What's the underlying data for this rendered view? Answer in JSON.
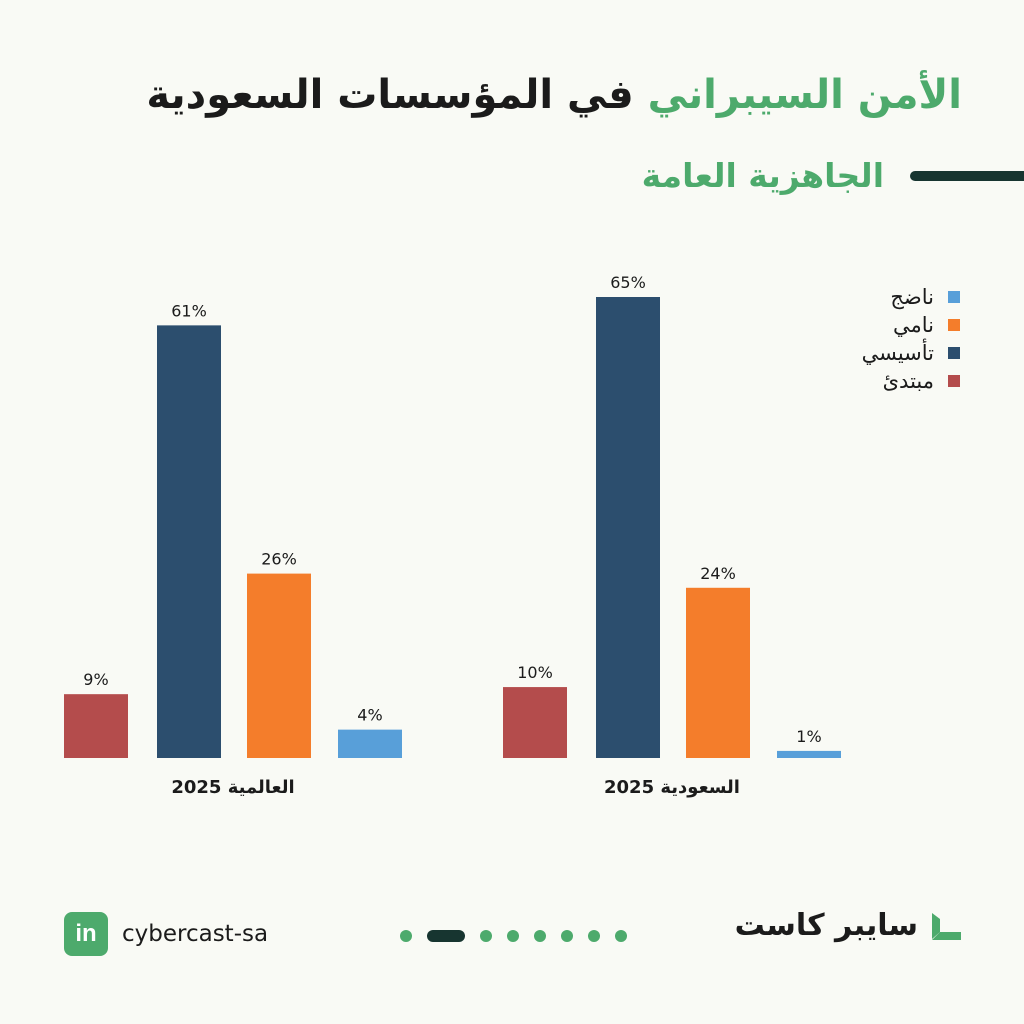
{
  "header": {
    "title_accent": "الأمن السيبراني",
    "title_rest": "في المؤسسات السعودية",
    "subtitle": "الجاهزية العامة"
  },
  "chart_data": {
    "type": "bar",
    "categories": [
      "العالمية 2025",
      "السعودية 2025"
    ],
    "series": [
      {
        "name": "مبتدئ",
        "color": "#b44c4c",
        "values": [
          9,
          10
        ]
      },
      {
        "name": "تأسيسي",
        "color": "#2c4e6e",
        "values": [
          61,
          65
        ]
      },
      {
        "name": "نامي",
        "color": "#f47d2b",
        "values": [
          26,
          24
        ]
      },
      {
        "name": "ناضج",
        "color": "#589fd9",
        "values": [
          4,
          1
        ]
      }
    ],
    "value_suffix": "%",
    "ylim": [
      0,
      65
    ],
    "legend_position": "top-right",
    "legend_order": [
      "ناضج",
      "نامي",
      "تأسيسي",
      "مبتدئ"
    ],
    "grid": false
  },
  "footer": {
    "linkedin_label": "in",
    "linkedin_handle": "cybercast-sa",
    "brand": "سايبر كاست",
    "pager": {
      "total": 8,
      "active": 1
    }
  },
  "colors": {
    "accent": "#4daa6c",
    "dark": "#173530",
    "background": "#f9faf5"
  },
  "icons": {
    "social": "linkedin-icon",
    "brand_logo": "cybercast-logo-icon"
  }
}
